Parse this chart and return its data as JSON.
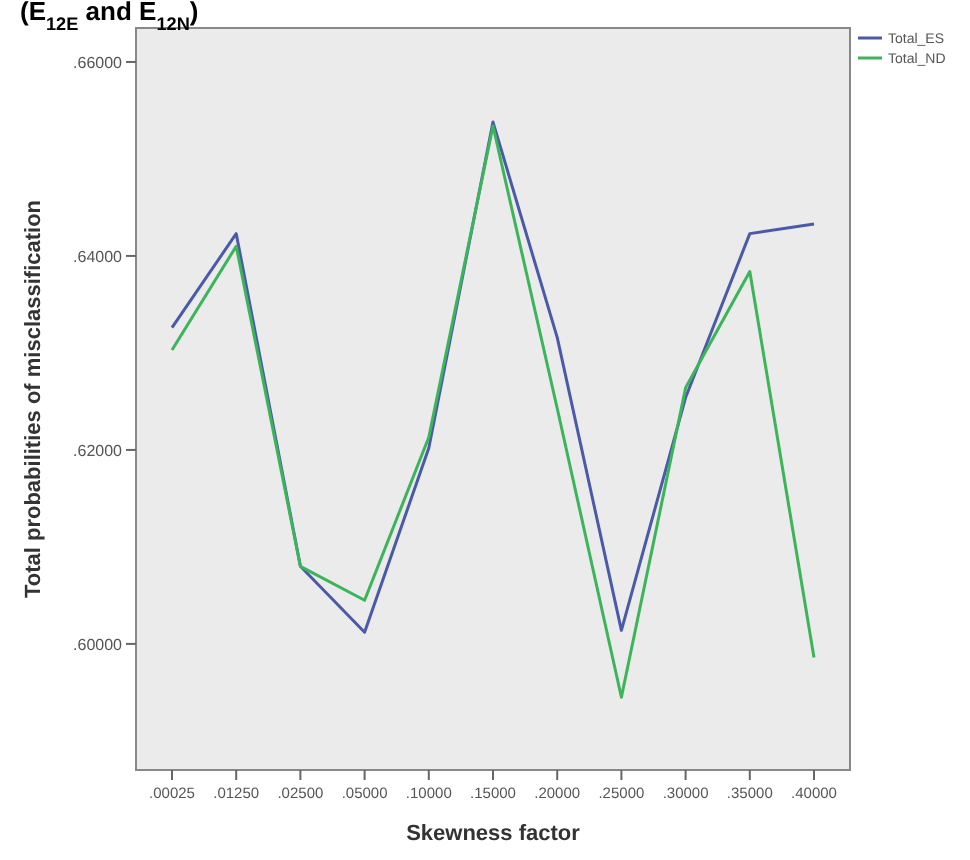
{
  "chart_data": {
    "type": "line",
    "title": "(E$_{12E}$ and E$_{12N}$)",
    "xlabel": "Skewness factor",
    "ylabel": "Total probabilities of misclassification",
    "categories": [
      ".00025",
      ".01250",
      ".02500",
      ".05000",
      ".10000",
      ".15000",
      ".20000",
      ".25000",
      ".30000",
      ".35000",
      ".40000"
    ],
    "series": [
      {
        "name": "Total_ES",
        "color": "#4a5aa8",
        "values": [
          0.6326,
          0.6423,
          0.608,
          0.6012,
          0.6202,
          0.6538,
          0.6316,
          0.6014,
          0.6254,
          0.6423,
          0.6433
        ]
      },
      {
        "name": "Total_ND",
        "color": "#3cb45a",
        "values": [
          0.6303,
          0.641,
          0.608,
          0.6045,
          0.6213,
          0.6534,
          0.6243,
          0.5945,
          0.6264,
          0.6384,
          0.5986
        ]
      }
    ],
    "ylim": [
      0.587,
      0.6635
    ],
    "yticks": [
      {
        "value": 0.6,
        "label": ".60000"
      },
      {
        "value": 0.62,
        "label": ".62000"
      },
      {
        "value": 0.64,
        "label": ".64000"
      },
      {
        "value": 0.66,
        "label": ".66000"
      }
    ],
    "grid": false,
    "legend": "right",
    "marker": "none",
    "line_style": "solid"
  }
}
